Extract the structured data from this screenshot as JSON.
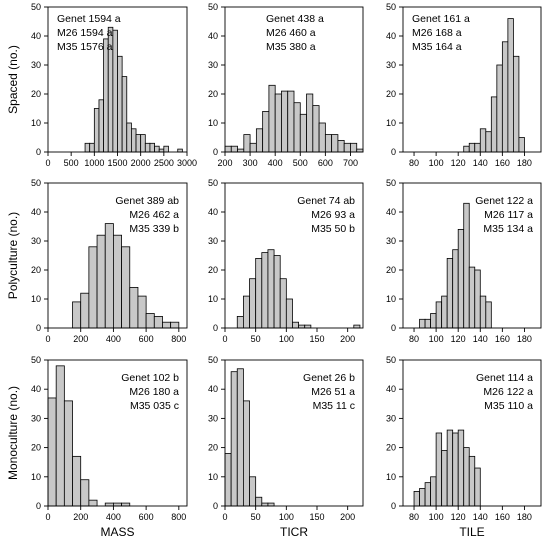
{
  "figure": {
    "row_labels": [
      "Spaced (no.)",
      "Polyculture (no.)",
      "Monoculture (no.)"
    ],
    "col_labels": [
      "MASS",
      "TICR",
      "TILE"
    ],
    "bar_fill": "#c8c8c8",
    "bar_stroke": "#000000"
  },
  "chart_data": [
    {
      "type": "bar",
      "row": "Spaced",
      "variable": "MASS",
      "ylim": [
        0,
        50
      ],
      "yticks": [
        0,
        10,
        20,
        30,
        40,
        50
      ],
      "xlim": [
        0,
        3000
      ],
      "xticks": [
        0,
        500,
        1000,
        1500,
        2000,
        2500,
        3000
      ],
      "bin_width": 100,
      "bin_starts": [
        800,
        900,
        1000,
        1100,
        1200,
        1300,
        1400,
        1500,
        1600,
        1700,
        1800,
        1900,
        2000,
        2100,
        2200,
        2300,
        2400,
        2500,
        2600,
        2700,
        2800,
        2900
      ],
      "values": [
        3,
        3,
        15,
        18,
        39,
        43,
        42,
        33,
        26,
        10,
        8,
        6,
        6,
        3,
        3,
        2,
        1,
        2,
        0,
        0,
        1,
        0
      ],
      "annotation": [
        "Genet 1594 a",
        "M26    1594 a",
        "M35    1576 a"
      ]
    },
    {
      "type": "bar",
      "row": "Spaced",
      "variable": "TICR",
      "ylim": [
        0,
        50
      ],
      "yticks": [
        0,
        10,
        20,
        30,
        40,
        50
      ],
      "xlim": [
        200,
        750
      ],
      "xticks": [
        200,
        300,
        400,
        500,
        600,
        700
      ],
      "bin_width": 25,
      "bin_starts": [
        200,
        225,
        250,
        275,
        300,
        325,
        350,
        375,
        400,
        425,
        450,
        475,
        500,
        525,
        550,
        575,
        600,
        625,
        650,
        675,
        700,
        725
      ],
      "values": [
        2,
        2,
        1,
        6,
        3,
        8,
        14,
        23,
        20,
        21,
        21,
        17,
        13,
        20,
        16,
        10,
        6,
        6,
        4,
        3,
        3,
        1
      ],
      "annotation": [
        "Genet 438 a",
        "M26    460 a",
        "M35    380 a"
      ]
    },
    {
      "type": "bar",
      "row": "Spaced",
      "variable": "TILE",
      "ylim": [
        0,
        50
      ],
      "yticks": [
        0,
        10,
        20,
        30,
        40,
        50
      ],
      "xlim": [
        70,
        195
      ],
      "xticks": [
        80,
        100,
        120,
        140,
        160,
        180
      ],
      "bin_width": 5,
      "bin_starts": [
        125,
        130,
        135,
        140,
        145,
        150,
        155,
        160,
        165,
        170,
        175
      ],
      "values": [
        2,
        3,
        3,
        8,
        7,
        19,
        30,
        38,
        46,
        33,
        5
      ],
      "annotation": [
        "Genet 161 a",
        "M26    168 a",
        "M35    164 a"
      ]
    },
    {
      "type": "bar",
      "row": "Polyculture",
      "variable": "MASS",
      "ylim": [
        0,
        50
      ],
      "yticks": [
        0,
        10,
        20,
        30,
        40,
        50
      ],
      "xlim": [
        0,
        850
      ],
      "xticks": [
        0,
        200,
        400,
        600,
        800
      ],
      "bin_width": 50,
      "bin_starts": [
        150,
        200,
        250,
        300,
        350,
        400,
        450,
        500,
        550,
        600,
        650,
        700,
        750
      ],
      "values": [
        9,
        12,
        28,
        32,
        36,
        32,
        28,
        14,
        11,
        5,
        4,
        2,
        2
      ],
      "annotation": [
        "Genet 389 ab",
        "M26    462 a",
        "M35    339 b"
      ]
    },
    {
      "type": "bar",
      "row": "Polyculture",
      "variable": "TICR",
      "ylim": [
        0,
        50
      ],
      "yticks": [
        0,
        10,
        20,
        30,
        40,
        50
      ],
      "xlim": [
        0,
        225
      ],
      "xticks": [
        0,
        50,
        100,
        150,
        200
      ],
      "bin_width": 10,
      "bin_starts": [
        20,
        30,
        40,
        50,
        60,
        70,
        80,
        90,
        100,
        110,
        120,
        130,
        210
      ],
      "values": [
        4,
        11,
        17,
        24,
        26,
        27,
        25,
        17,
        10,
        2,
        1,
        1,
        1
      ],
      "annotation": [
        "Genet 74 ab",
        "M26    93 a",
        "M35    50 b"
      ]
    },
    {
      "type": "bar",
      "row": "Polyculture",
      "variable": "TILE",
      "ylim": [
        0,
        50
      ],
      "yticks": [
        0,
        10,
        20,
        30,
        40,
        50
      ],
      "xlim": [
        70,
        195
      ],
      "xticks": [
        80,
        100,
        120,
        140,
        160,
        180
      ],
      "bin_width": 5,
      "bin_starts": [
        85,
        90,
        95,
        100,
        105,
        110,
        115,
        120,
        125,
        130,
        135,
        140,
        145
      ],
      "values": [
        3,
        3,
        5,
        9,
        11,
        24,
        27,
        34,
        43,
        21,
        20,
        11,
        9
      ],
      "annotation": [
        "Genet 122 a",
        "M26    117 a",
        "M35    134 a"
      ]
    },
    {
      "type": "bar",
      "row": "Monoculture",
      "variable": "MASS",
      "ylim": [
        0,
        50
      ],
      "yticks": [
        0,
        10,
        20,
        30,
        40,
        50
      ],
      "xlim": [
        0,
        850
      ],
      "xticks": [
        0,
        200,
        400,
        600,
        800
      ],
      "bin_width": 50,
      "bin_starts": [
        0,
        50,
        100,
        150,
        200,
        250,
        300,
        350,
        400,
        450
      ],
      "values": [
        37,
        48,
        36,
        17,
        9,
        2,
        0,
        1,
        1,
        1
      ],
      "annotation": [
        "Genet 102 b",
        "M26    180 a",
        "M35    035 c"
      ]
    },
    {
      "type": "bar",
      "row": "Monoculture",
      "variable": "TICR",
      "ylim": [
        0,
        50
      ],
      "yticks": [
        0,
        10,
        20,
        30,
        40,
        50
      ],
      "xlim": [
        0,
        225
      ],
      "xticks": [
        0,
        50,
        100,
        150,
        200
      ],
      "bin_width": 10,
      "bin_starts": [
        0,
        10,
        20,
        30,
        40,
        50,
        60,
        70
      ],
      "values": [
        18,
        46,
        47,
        36,
        10,
        3,
        1,
        1
      ],
      "annotation": [
        "Genet 26 b",
        "M26    51 a",
        "M35    11 c"
      ]
    },
    {
      "type": "bar",
      "row": "Monoculture",
      "variable": "TILE",
      "ylim": [
        0,
        50
      ],
      "yticks": [
        0,
        10,
        20,
        30,
        40,
        50
      ],
      "xlim": [
        70,
        195
      ],
      "xticks": [
        80,
        100,
        120,
        140,
        160,
        180
      ],
      "bin_width": 5,
      "bin_starts": [
        80,
        85,
        90,
        95,
        100,
        105,
        110,
        115,
        120,
        125,
        130,
        135
      ],
      "values": [
        5,
        6,
        8,
        10,
        25,
        19,
        26,
        25,
        26,
        20,
        17,
        13
      ],
      "annotation": [
        "Genet 114 a",
        "M26    122 a",
        "M35    110 a"
      ]
    }
  ]
}
